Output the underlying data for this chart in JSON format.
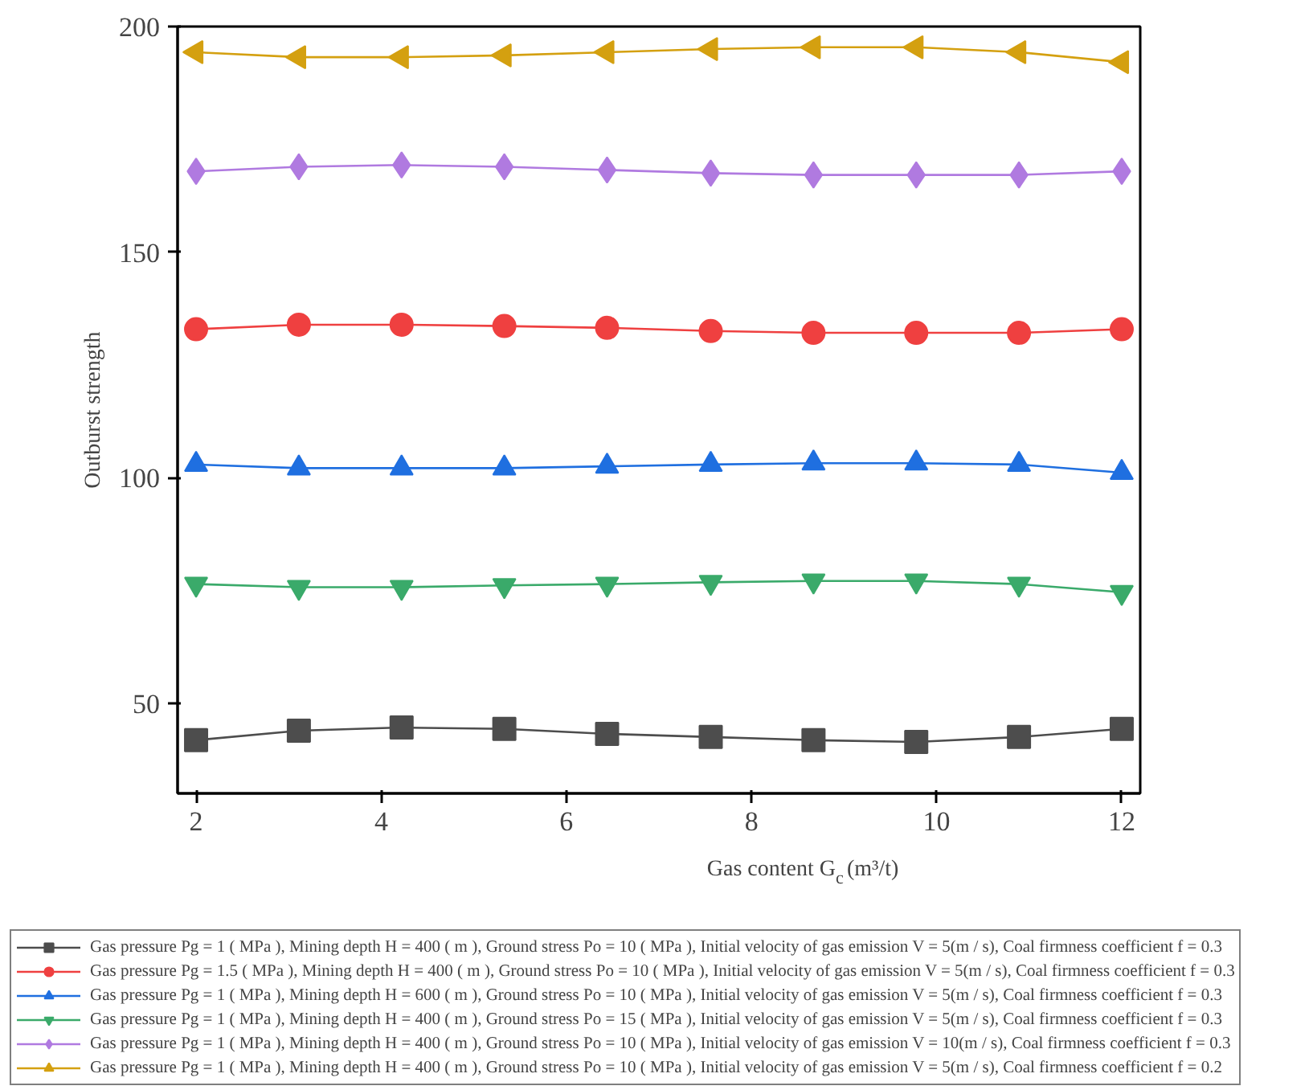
{
  "chart_data": {
    "type": "line",
    "xlabel": "Gas content G$_{c}$(m³/t)",
    "ylabel": "Outburst strength",
    "x": [
      2,
      3.11,
      4.22,
      5.33,
      6.44,
      7.56,
      8.67,
      9.78,
      10.89,
      12
    ],
    "xlim": [
      1.8,
      12.2
    ],
    "xticks": [
      2,
      4,
      6,
      8,
      10,
      12
    ],
    "ylim": [
      30,
      200
    ],
    "yticks": [
      50,
      100,
      150,
      200
    ],
    "grid": false,
    "legend": "bottom",
    "line_style": "solid",
    "series": [
      {
        "name": "Gas pressure Pg = 1 ( MPa ), Mining depth H = 400 ( m ), Ground stress Po = 10 ( MPa ), Initial velocity of gas emission V = 5(m / s), Coal firmness coefficient f = 0.3",
        "color": "#4d4d4d",
        "marker": "square",
        "values": [
          41.8,
          43.9,
          44.6,
          44.3,
          43.2,
          42.5,
          41.8,
          41.4,
          42.5,
          44.3
        ]
      },
      {
        "name": "Gas pressure Pg = 1.5 ( MPa ), Mining depth H = 400 ( m ), Ground stress Po = 10 ( MPa ), Initial velocity of gas emission V = 5(m / s), Coal firmness coefficient f = 0.3",
        "color": "#ef4040",
        "marker": "circle",
        "values": [
          132.9,
          133.9,
          133.9,
          133.6,
          133.2,
          132.5,
          132.1,
          132.1,
          132.1,
          132.9
        ]
      },
      {
        "name": "Gas pressure Pg = 1 ( MPa ), Mining depth H = 600 ( m ), Ground stress Po = 10 ( MPa ), Initial velocity of gas emission V = 5(m / s), Coal firmness coefficient f = 0.3",
        "color": "#1f6fe0",
        "marker": "triangle",
        "values": [
          102.9,
          102.1,
          102.1,
          102.1,
          102.5,
          102.9,
          103.2,
          103.2,
          102.9,
          101.1
        ]
      },
      {
        "name": "Gas pressure Pg = 1 ( MPa ), Mining depth H = 400 ( m ), Ground stress Po = 15 ( MPa ), Initial velocity of gas emission V = 5(m / s), Coal firmness coefficient f = 0.3",
        "color": "#3aaa6a",
        "marker": "triangle-down",
        "values": [
          76.4,
          75.7,
          75.7,
          76.1,
          76.4,
          76.8,
          77.1,
          77.1,
          76.4,
          74.6
        ]
      },
      {
        "name": "Gas pressure Pg = 1 ( MPa ), Mining depth H = 400 ( m ), Ground stress Po = 10 ( MPa ), Initial velocity of gas emission V = 10(m / s), Coal firmness coefficient f = 0.3",
        "color": "#b07ae0",
        "marker": "diamond",
        "values": [
          167.9,
          168.9,
          169.3,
          168.9,
          168.2,
          167.5,
          167.1,
          167.1,
          167.1,
          167.9
        ]
      },
      {
        "name": "Gas pressure Pg = 1 ( MPa ), Mining depth H = 400 ( m ), Ground stress Po = 10 ( MPa ), Initial velocity of gas emission V = 5(m / s), Coal firmness coefficient f = 0.2",
        "color": "#d4a010",
        "marker": "triangle-left",
        "values": [
          194.3,
          193.2,
          193.2,
          193.6,
          194.3,
          195,
          195.4,
          195.4,
          194.3,
          192.1
        ]
      }
    ]
  }
}
